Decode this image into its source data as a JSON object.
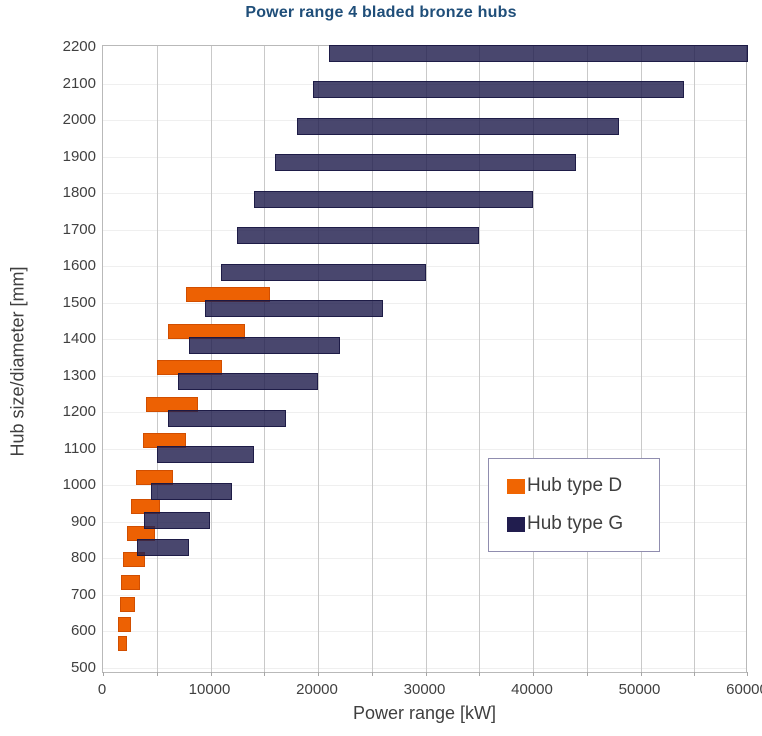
{
  "title": "Power range 4 bladed bronze hubs",
  "chart_data": {
    "type": "bar",
    "subtype": "horizontal-range-bars",
    "title": "Power range 4 bladed bronze hubs",
    "xlabel": "Power range [kW]",
    "ylabel": "Hub size/diameter [mm]",
    "xlim": [
      0,
      60000
    ],
    "ylim": [
      500,
      2200
    ],
    "x_ticks": [
      0,
      10000,
      20000,
      30000,
      40000,
      50000,
      60000
    ],
    "x_grid_step": 5000,
    "y_ticks": [
      2200,
      2100,
      2000,
      1900,
      1800,
      1700,
      1600,
      1500,
      1400,
      1300,
      1200,
      1100,
      1000,
      900,
      800,
      700,
      600,
      500
    ],
    "grid": true,
    "legend_position": "inside-right",
    "series": [
      {
        "name": "Hub type D",
        "fill": "#ed6103",
        "border": "#d14e00",
        "legend_color": "#f06502",
        "rows": [
          {
            "hub": 1500,
            "range": [
              7700,
              15500
            ]
          },
          {
            "hub": 1400,
            "range": [
              6000,
              13200
            ]
          },
          {
            "hub": 1300,
            "range": [
              5000,
              11100
            ]
          },
          {
            "hub": 1200,
            "range": [
              4000,
              8800
            ]
          },
          {
            "hub": 1100,
            "range": [
              3700,
              7700
            ]
          },
          {
            "hub": 1000,
            "range": [
              3100,
              6500
            ]
          },
          {
            "hub": 920,
            "range": [
              2600,
              5300
            ]
          },
          {
            "hub": 845,
            "range": [
              2200,
              4800
            ]
          },
          {
            "hub": 775,
            "range": [
              1900,
              3900
            ]
          },
          {
            "hub": 710,
            "range": [
              1700,
              3400
            ]
          },
          {
            "hub": 650,
            "range": [
              1550,
              3000
            ]
          },
          {
            "hub": 595,
            "range": [
              1400,
              2600
            ]
          },
          {
            "hub": 545,
            "range": [
              1350,
              2200
            ]
          }
        ]
      },
      {
        "name": "Hub type G",
        "fill": "rgba(33,30,78,0.82)",
        "border": "rgba(26,23,66,0.9)",
        "legend_color": "#211d4e",
        "rows": [
          {
            "hub": 2200,
            "range": [
              21000,
              60000
            ]
          },
          {
            "hub": 2100,
            "range": [
              19500,
              54000
            ]
          },
          {
            "hub": 2000,
            "range": [
              18000,
              48000
            ]
          },
          {
            "hub": 1900,
            "range": [
              16000,
              44000
            ]
          },
          {
            "hub": 1800,
            "range": [
              14000,
              40000
            ]
          },
          {
            "hub": 1700,
            "range": [
              12500,
              35000
            ]
          },
          {
            "hub": 1600,
            "range": [
              11000,
              30000
            ]
          },
          {
            "hub": 1500,
            "range": [
              9500,
              26000
            ]
          },
          {
            "hub": 1400,
            "range": [
              8000,
              22000
            ]
          },
          {
            "hub": 1300,
            "range": [
              7000,
              20000
            ]
          },
          {
            "hub": 1200,
            "range": [
              6000,
              17000
            ]
          },
          {
            "hub": 1100,
            "range": [
              5000,
              14000
            ]
          },
          {
            "hub": 1000,
            "range": [
              4500,
              12000
            ]
          },
          {
            "hub": 920,
            "range": [
              3800,
              10000
            ]
          },
          {
            "hub": 845,
            "range": [
              3200,
              8000
            ]
          }
        ]
      }
    ]
  }
}
